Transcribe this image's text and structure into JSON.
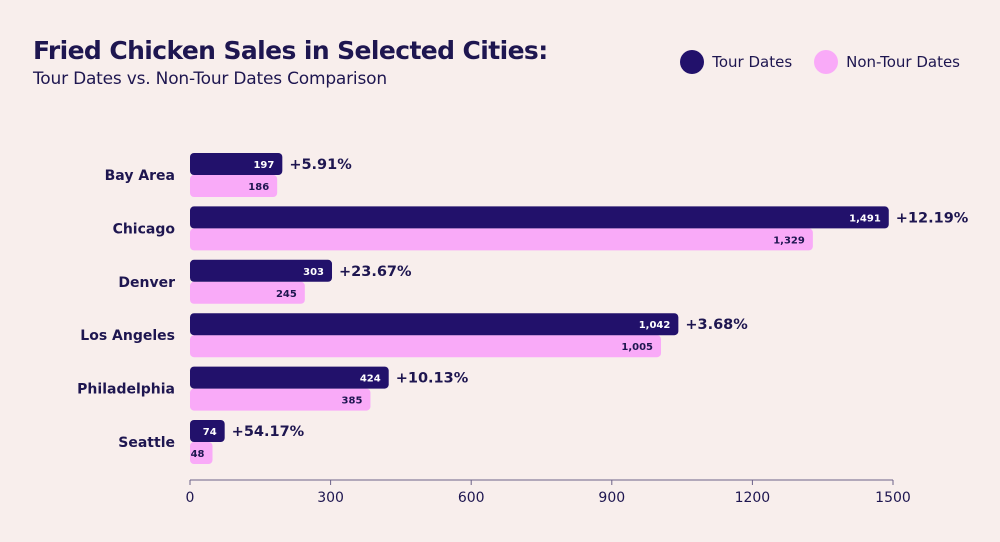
{
  "legend": {
    "tour_label": "Tour Dates",
    "nontour_label": "Non-Tour Dates"
  },
  "colors": {
    "tour": "#22116b",
    "nontour": "#f9aaf8",
    "background": "#f8eeec",
    "text": "#1e1650"
  },
  "chart_data": {
    "type": "bar",
    "orientation": "horizontal",
    "title": "Fried Chicken Sales in Selected Cities:",
    "subtitle": "Tour Dates vs. Non-Tour Dates Comparison",
    "categories": [
      "Bay Area",
      "Chicago",
      "Denver",
      "Los Angeles",
      "Philadelphia",
      "Seattle"
    ],
    "series": [
      {
        "name": "Tour Dates",
        "values": [
          197,
          1491,
          303,
          1042,
          424,
          74
        ],
        "labels": [
          "197",
          "1,491",
          "303",
          "1,042",
          "424",
          "74"
        ]
      },
      {
        "name": "Non-Tour Dates",
        "values": [
          186,
          1329,
          245,
          1005,
          385,
          48
        ],
        "labels": [
          "186",
          "1,329",
          "245",
          "1,005",
          "385",
          "48"
        ]
      }
    ],
    "change_labels": [
      "+5.91%",
      "+12.19%",
      "+23.67%",
      "+3.68%",
      "+10.13%",
      "+54.17%"
    ],
    "xlim": [
      0,
      1500
    ],
    "xticks": [
      0,
      300,
      600,
      900,
      1200,
      1500
    ],
    "xtick_labels": [
      "0",
      "300",
      "600",
      "900",
      "1200",
      "1500"
    ],
    "legend_position": "top-right",
    "grid": false
  }
}
